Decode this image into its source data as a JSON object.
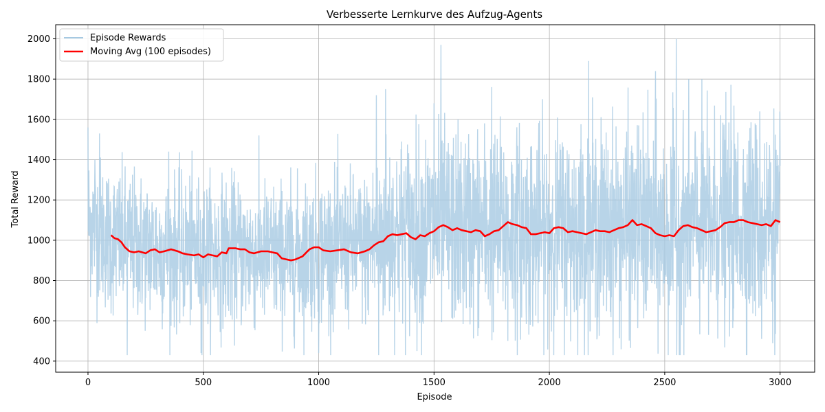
{
  "chart_data": {
    "type": "line",
    "title": "Verbesserte Lernkurve des Aufzug-Agents",
    "xlabel": "Episode",
    "ylabel": "Total Reward",
    "xlim": [
      -140,
      3150
    ],
    "ylim": [
      345,
      2070
    ],
    "xticks": [
      0,
      500,
      1000,
      1500,
      2000,
      2500,
      3000
    ],
    "yticks": [
      400,
      600,
      800,
      1000,
      1200,
      1400,
      1600,
      1800,
      2000
    ],
    "grid": true,
    "legend_position": "top-left",
    "colors": {
      "raw": "#a6c9e2",
      "avg": "#ff0000",
      "grid": "#b0b0b0"
    },
    "series": [
      {
        "name": "Episode Rewards",
        "style": "noisy",
        "x_range": [
          0,
          3000
        ],
        "mean_profile": [
          [
            0,
            1100
          ],
          [
            100,
            1000
          ],
          [
            300,
            950
          ],
          [
            600,
            940
          ],
          [
            900,
            920
          ],
          [
            1000,
            960
          ],
          [
            1200,
            960
          ],
          [
            1300,
            1030
          ],
          [
            1500,
            1060
          ],
          [
            2000,
            1050
          ],
          [
            2300,
            1060
          ],
          [
            2400,
            1070
          ],
          [
            2500,
            1030
          ],
          [
            2600,
            1070
          ],
          [
            2800,
            1100
          ],
          [
            3000,
            1090
          ]
        ],
        "spread_profile": [
          [
            0,
            180
          ],
          [
            1200,
            180
          ],
          [
            1300,
            240
          ],
          [
            3000,
            260
          ]
        ],
        "peaks": [
          [
            0,
            1560
          ],
          [
            30,
            1400
          ],
          [
            50,
            1530
          ],
          [
            170,
            430
          ],
          [
            350,
            1440
          ],
          [
            490,
            440
          ],
          [
            1000,
            440
          ],
          [
            1250,
            1720
          ],
          [
            1260,
            430
          ],
          [
            1290,
            1750
          ],
          [
            1500,
            1680
          ],
          [
            1530,
            1970
          ],
          [
            1750,
            1760
          ],
          [
            1820,
            500
          ],
          [
            2170,
            1890
          ],
          [
            2460,
            1840
          ],
          [
            2550,
            2000
          ],
          [
            2690,
            530
          ],
          [
            2920,
            1820
          ],
          [
            2920,
            510
          ]
        ]
      },
      {
        "name": "Moving Avg (100 episodes)",
        "style": "line",
        "points": [
          [
            100,
            1025
          ],
          [
            115,
            1010
          ],
          [
            130,
            1005
          ],
          [
            145,
            990
          ],
          [
            160,
            965
          ],
          [
            180,
            945
          ],
          [
            200,
            940
          ],
          [
            220,
            945
          ],
          [
            250,
            935
          ],
          [
            270,
            950
          ],
          [
            290,
            955
          ],
          [
            310,
            940
          ],
          [
            330,
            945
          ],
          [
            360,
            955
          ],
          [
            390,
            945
          ],
          [
            410,
            935
          ],
          [
            430,
            930
          ],
          [
            460,
            925
          ],
          [
            480,
            930
          ],
          [
            500,
            915
          ],
          [
            520,
            930
          ],
          [
            540,
            925
          ],
          [
            560,
            920
          ],
          [
            580,
            940
          ],
          [
            600,
            935
          ],
          [
            610,
            960
          ],
          [
            640,
            960
          ],
          [
            660,
            955
          ],
          [
            680,
            955
          ],
          [
            700,
            940
          ],
          [
            720,
            935
          ],
          [
            750,
            945
          ],
          [
            780,
            945
          ],
          [
            800,
            940
          ],
          [
            820,
            935
          ],
          [
            840,
            910
          ],
          [
            860,
            905
          ],
          [
            880,
            900
          ],
          [
            900,
            905
          ],
          [
            930,
            920
          ],
          [
            960,
            955
          ],
          [
            980,
            965
          ],
          [
            1000,
            965
          ],
          [
            1020,
            950
          ],
          [
            1050,
            945
          ],
          [
            1080,
            950
          ],
          [
            1110,
            955
          ],
          [
            1140,
            940
          ],
          [
            1170,
            935
          ],
          [
            1200,
            945
          ],
          [
            1220,
            955
          ],
          [
            1240,
            975
          ],
          [
            1260,
            990
          ],
          [
            1280,
            995
          ],
          [
            1300,
            1020
          ],
          [
            1320,
            1030
          ],
          [
            1340,
            1025
          ],
          [
            1360,
            1030
          ],
          [
            1380,
            1035
          ],
          [
            1400,
            1015
          ],
          [
            1420,
            1005
          ],
          [
            1440,
            1025
          ],
          [
            1460,
            1020
          ],
          [
            1480,
            1035
          ],
          [
            1500,
            1045
          ],
          [
            1520,
            1065
          ],
          [
            1540,
            1075
          ],
          [
            1560,
            1065
          ],
          [
            1580,
            1050
          ],
          [
            1600,
            1060
          ],
          [
            1620,
            1050
          ],
          [
            1640,
            1045
          ],
          [
            1660,
            1040
          ],
          [
            1680,
            1050
          ],
          [
            1700,
            1045
          ],
          [
            1720,
            1020
          ],
          [
            1740,
            1030
          ],
          [
            1760,
            1045
          ],
          [
            1780,
            1050
          ],
          [
            1800,
            1070
          ],
          [
            1820,
            1090
          ],
          [
            1840,
            1080
          ],
          [
            1860,
            1075
          ],
          [
            1880,
            1065
          ],
          [
            1900,
            1060
          ],
          [
            1920,
            1030
          ],
          [
            1940,
            1030
          ],
          [
            1960,
            1035
          ],
          [
            1980,
            1040
          ],
          [
            2000,
            1035
          ],
          [
            2020,
            1060
          ],
          [
            2040,
            1065
          ],
          [
            2060,
            1060
          ],
          [
            2080,
            1040
          ],
          [
            2100,
            1045
          ],
          [
            2120,
            1040
          ],
          [
            2140,
            1035
          ],
          [
            2160,
            1030
          ],
          [
            2180,
            1040
          ],
          [
            2200,
            1050
          ],
          [
            2220,
            1045
          ],
          [
            2240,
            1045
          ],
          [
            2260,
            1040
          ],
          [
            2280,
            1050
          ],
          [
            2300,
            1060
          ],
          [
            2320,
            1065
          ],
          [
            2340,
            1075
          ],
          [
            2360,
            1100
          ],
          [
            2380,
            1075
          ],
          [
            2400,
            1080
          ],
          [
            2420,
            1070
          ],
          [
            2440,
            1060
          ],
          [
            2460,
            1035
          ],
          [
            2480,
            1025
          ],
          [
            2500,
            1020
          ],
          [
            2520,
            1025
          ],
          [
            2540,
            1020
          ],
          [
            2560,
            1050
          ],
          [
            2580,
            1070
          ],
          [
            2600,
            1075
          ],
          [
            2620,
            1065
          ],
          [
            2640,
            1060
          ],
          [
            2660,
            1050
          ],
          [
            2680,
            1040
          ],
          [
            2700,
            1045
          ],
          [
            2720,
            1050
          ],
          [
            2740,
            1065
          ],
          [
            2760,
            1085
          ],
          [
            2780,
            1090
          ],
          [
            2800,
            1090
          ],
          [
            2820,
            1100
          ],
          [
            2840,
            1100
          ],
          [
            2860,
            1090
          ],
          [
            2880,
            1085
          ],
          [
            2900,
            1080
          ],
          [
            2920,
            1075
          ],
          [
            2940,
            1080
          ],
          [
            2960,
            1070
          ],
          [
            2980,
            1100
          ],
          [
            3000,
            1090
          ]
        ]
      }
    ]
  }
}
